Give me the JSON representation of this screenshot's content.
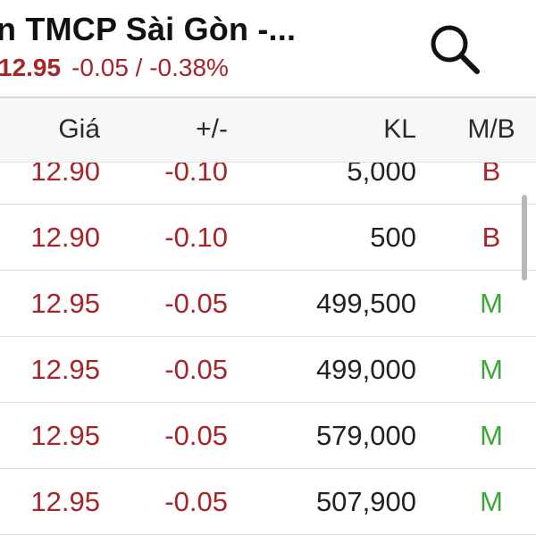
{
  "header": {
    "title": "n TMCP Sài Gòn -...",
    "price": "12.95",
    "change": "-0.05 / -0.38%"
  },
  "icons": {
    "search": "search-icon"
  },
  "colors": {
    "down_red": "#a5252a",
    "buy_green": "#3fa63a",
    "text_dark": "#222222",
    "header_bg": "#f7f7f7"
  },
  "table": {
    "columns": {
      "price": "Giá",
      "change": "+/-",
      "volume": "KL",
      "side": "M/B"
    },
    "rows": [
      {
        "price": "12.90",
        "change": "-0.10",
        "volume": "5,000",
        "side": "B"
      },
      {
        "price": "12.90",
        "change": "-0.10",
        "volume": "500",
        "side": "B"
      },
      {
        "price": "12.95",
        "change": "-0.05",
        "volume": "499,500",
        "side": "M"
      },
      {
        "price": "12.95",
        "change": "-0.05",
        "volume": "499,000",
        "side": "M"
      },
      {
        "price": "12.95",
        "change": "-0.05",
        "volume": "579,000",
        "side": "M"
      },
      {
        "price": "12.95",
        "change": "-0.05",
        "volume": "507,900",
        "side": "M"
      }
    ]
  }
}
